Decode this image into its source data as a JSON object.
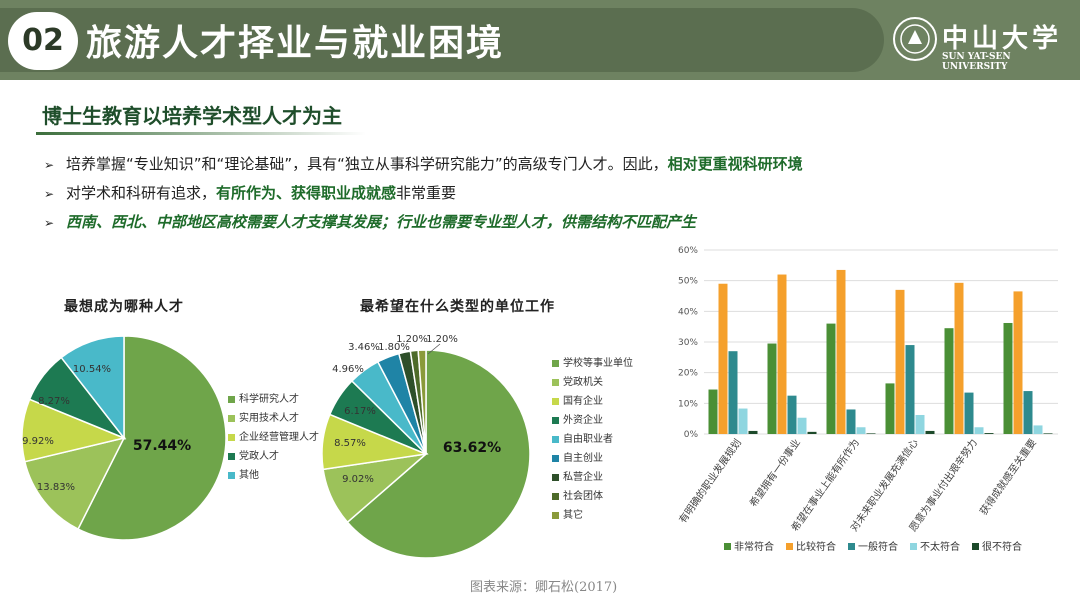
{
  "header": {
    "number": "02",
    "title": "旅游人才择业与就业困境",
    "logo_cn": "中山大学",
    "logo_en": "SUN YAT-SEN UNIVERSITY"
  },
  "subtitle": "博士生教育以培养学术型人才为主",
  "bullets": [
    {
      "marker": "➢",
      "parts": [
        {
          "text": "培养掌握“专业知识”和“理论基础”，具有“独立从事科学研究能力”的高级专门人才。因此，",
          "style": "plain"
        },
        {
          "text": "相对更重视科研环境",
          "style": "bold"
        }
      ]
    },
    {
      "marker": "➢",
      "parts": [
        {
          "text": "对学术和科研有追求，",
          "style": "plain"
        },
        {
          "text": "有所作为、获得职业成就感",
          "style": "bold"
        },
        {
          "text": "非常重要",
          "style": "plain"
        }
      ]
    },
    {
      "marker": "➢",
      "parts": [
        {
          "text": "西南、西北、中部地区高校需要人才支撑其发展；行业也需要专业型人才，供需结构不匹配产生",
          "style": "bold-italic"
        }
      ]
    }
  ],
  "chart_data": [
    {
      "type": "pie",
      "title": "最想成为哪种人才",
      "categories": [
        "科学研究人才",
        "实用技术人才",
        "企业经营管理人才",
        "党政人才",
        "其他"
      ],
      "values": [
        57.44,
        13.83,
        9.92,
        8.27,
        10.54
      ],
      "labels": [
        "57.44%",
        "13.83%",
        "9.92%",
        "8.27%",
        "10.54%"
      ],
      "colors": [
        "#6fa54a",
        "#9cc25a",
        "#c6d84a",
        "#1d7a52",
        "#49b9c9"
      ],
      "legend": "right"
    },
    {
      "type": "pie",
      "title": "最希望在什么类型的单位工作",
      "categories": [
        "学校等事业单位",
        "党政机关",
        "国有企业",
        "外资企业",
        "自由职业者",
        "自主创业",
        "私营企业",
        "社会团体",
        "其它"
      ],
      "values": [
        63.62,
        9.02,
        8.57,
        6.17,
        4.96,
        3.46,
        1.8,
        1.2,
        1.2
      ],
      "labels": [
        "63.62%",
        "9.02%",
        "8.57%",
        "6.17%",
        "4.96%",
        "3.46%",
        "1.80%",
        "1.20%",
        "1.20%"
      ],
      "colors": [
        "#6fa54a",
        "#9cc25a",
        "#c6d84a",
        "#1d7a52",
        "#49b9c9",
        "#1f84a6",
        "#2e4f2a",
        "#4d6b2a",
        "#8a9a3a"
      ],
      "legend": "right"
    },
    {
      "type": "bar",
      "categories": [
        "有明确的职业发展规划",
        "希望拥有一份事业",
        "希望在事业上能有所作为",
        "对未来职业发展充满信心",
        "愿意为事业付出艰辛努力",
        "获得成就感至关重要"
      ],
      "series": [
        {
          "name": "非常符合",
          "values": [
            14.5,
            29.5,
            36,
            16.5,
            34.5,
            36.2
          ]
        },
        {
          "name": "比较符合",
          "values": [
            49,
            52,
            53.5,
            47,
            49.3,
            46.5
          ]
        },
        {
          "name": "一般符合",
          "values": [
            27,
            12.5,
            8,
            29,
            13.5,
            14
          ]
        },
        {
          "name": "不太符合",
          "values": [
            8.3,
            5.3,
            2.2,
            6.2,
            2.2,
            2.8
          ]
        },
        {
          "name": "很不符合",
          "values": [
            1,
            0.7,
            0.2,
            1,
            0.3,
            0.2
          ]
        }
      ],
      "colors": [
        "#4a8f35",
        "#f5a02c",
        "#2e8a8e",
        "#8fd6e0",
        "#1c4a2a"
      ],
      "yticks": [
        "0%",
        "10%",
        "20%",
        "30%",
        "40%",
        "50%",
        "60%"
      ],
      "ylim": [
        0,
        60
      ],
      "legend": "bottom"
    }
  ],
  "source": "图表来源：卿石松(2017)"
}
